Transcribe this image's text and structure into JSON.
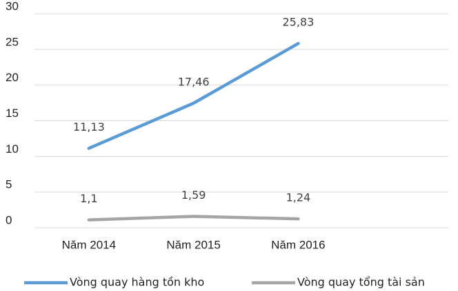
{
  "chart_data": {
    "type": "line",
    "categories": [
      "Năm 2014",
      "Năm 2015",
      "Năm 2016",
      null
    ],
    "series": [
      {
        "name": "Vòng quay hàng tồn kho",
        "color": "#5b9bd5",
        "values": [
          11.13,
          17.46,
          25.83,
          null
        ],
        "value_labels": [
          "11,13",
          "17,46",
          "25,83",
          null
        ]
      },
      {
        "name": "Vòng quay tổng tài sản",
        "color": "#a5a5a5",
        "values": [
          1.1,
          1.59,
          1.24,
          null
        ],
        "value_labels": [
          "1,1",
          "1,59",
          "1,24",
          null
        ]
      }
    ],
    "ylim": [
      0,
      30
    ],
    "yticks": [
      0,
      5,
      10,
      15,
      20,
      25,
      30
    ],
    "grid": true,
    "legend": "bottom"
  }
}
